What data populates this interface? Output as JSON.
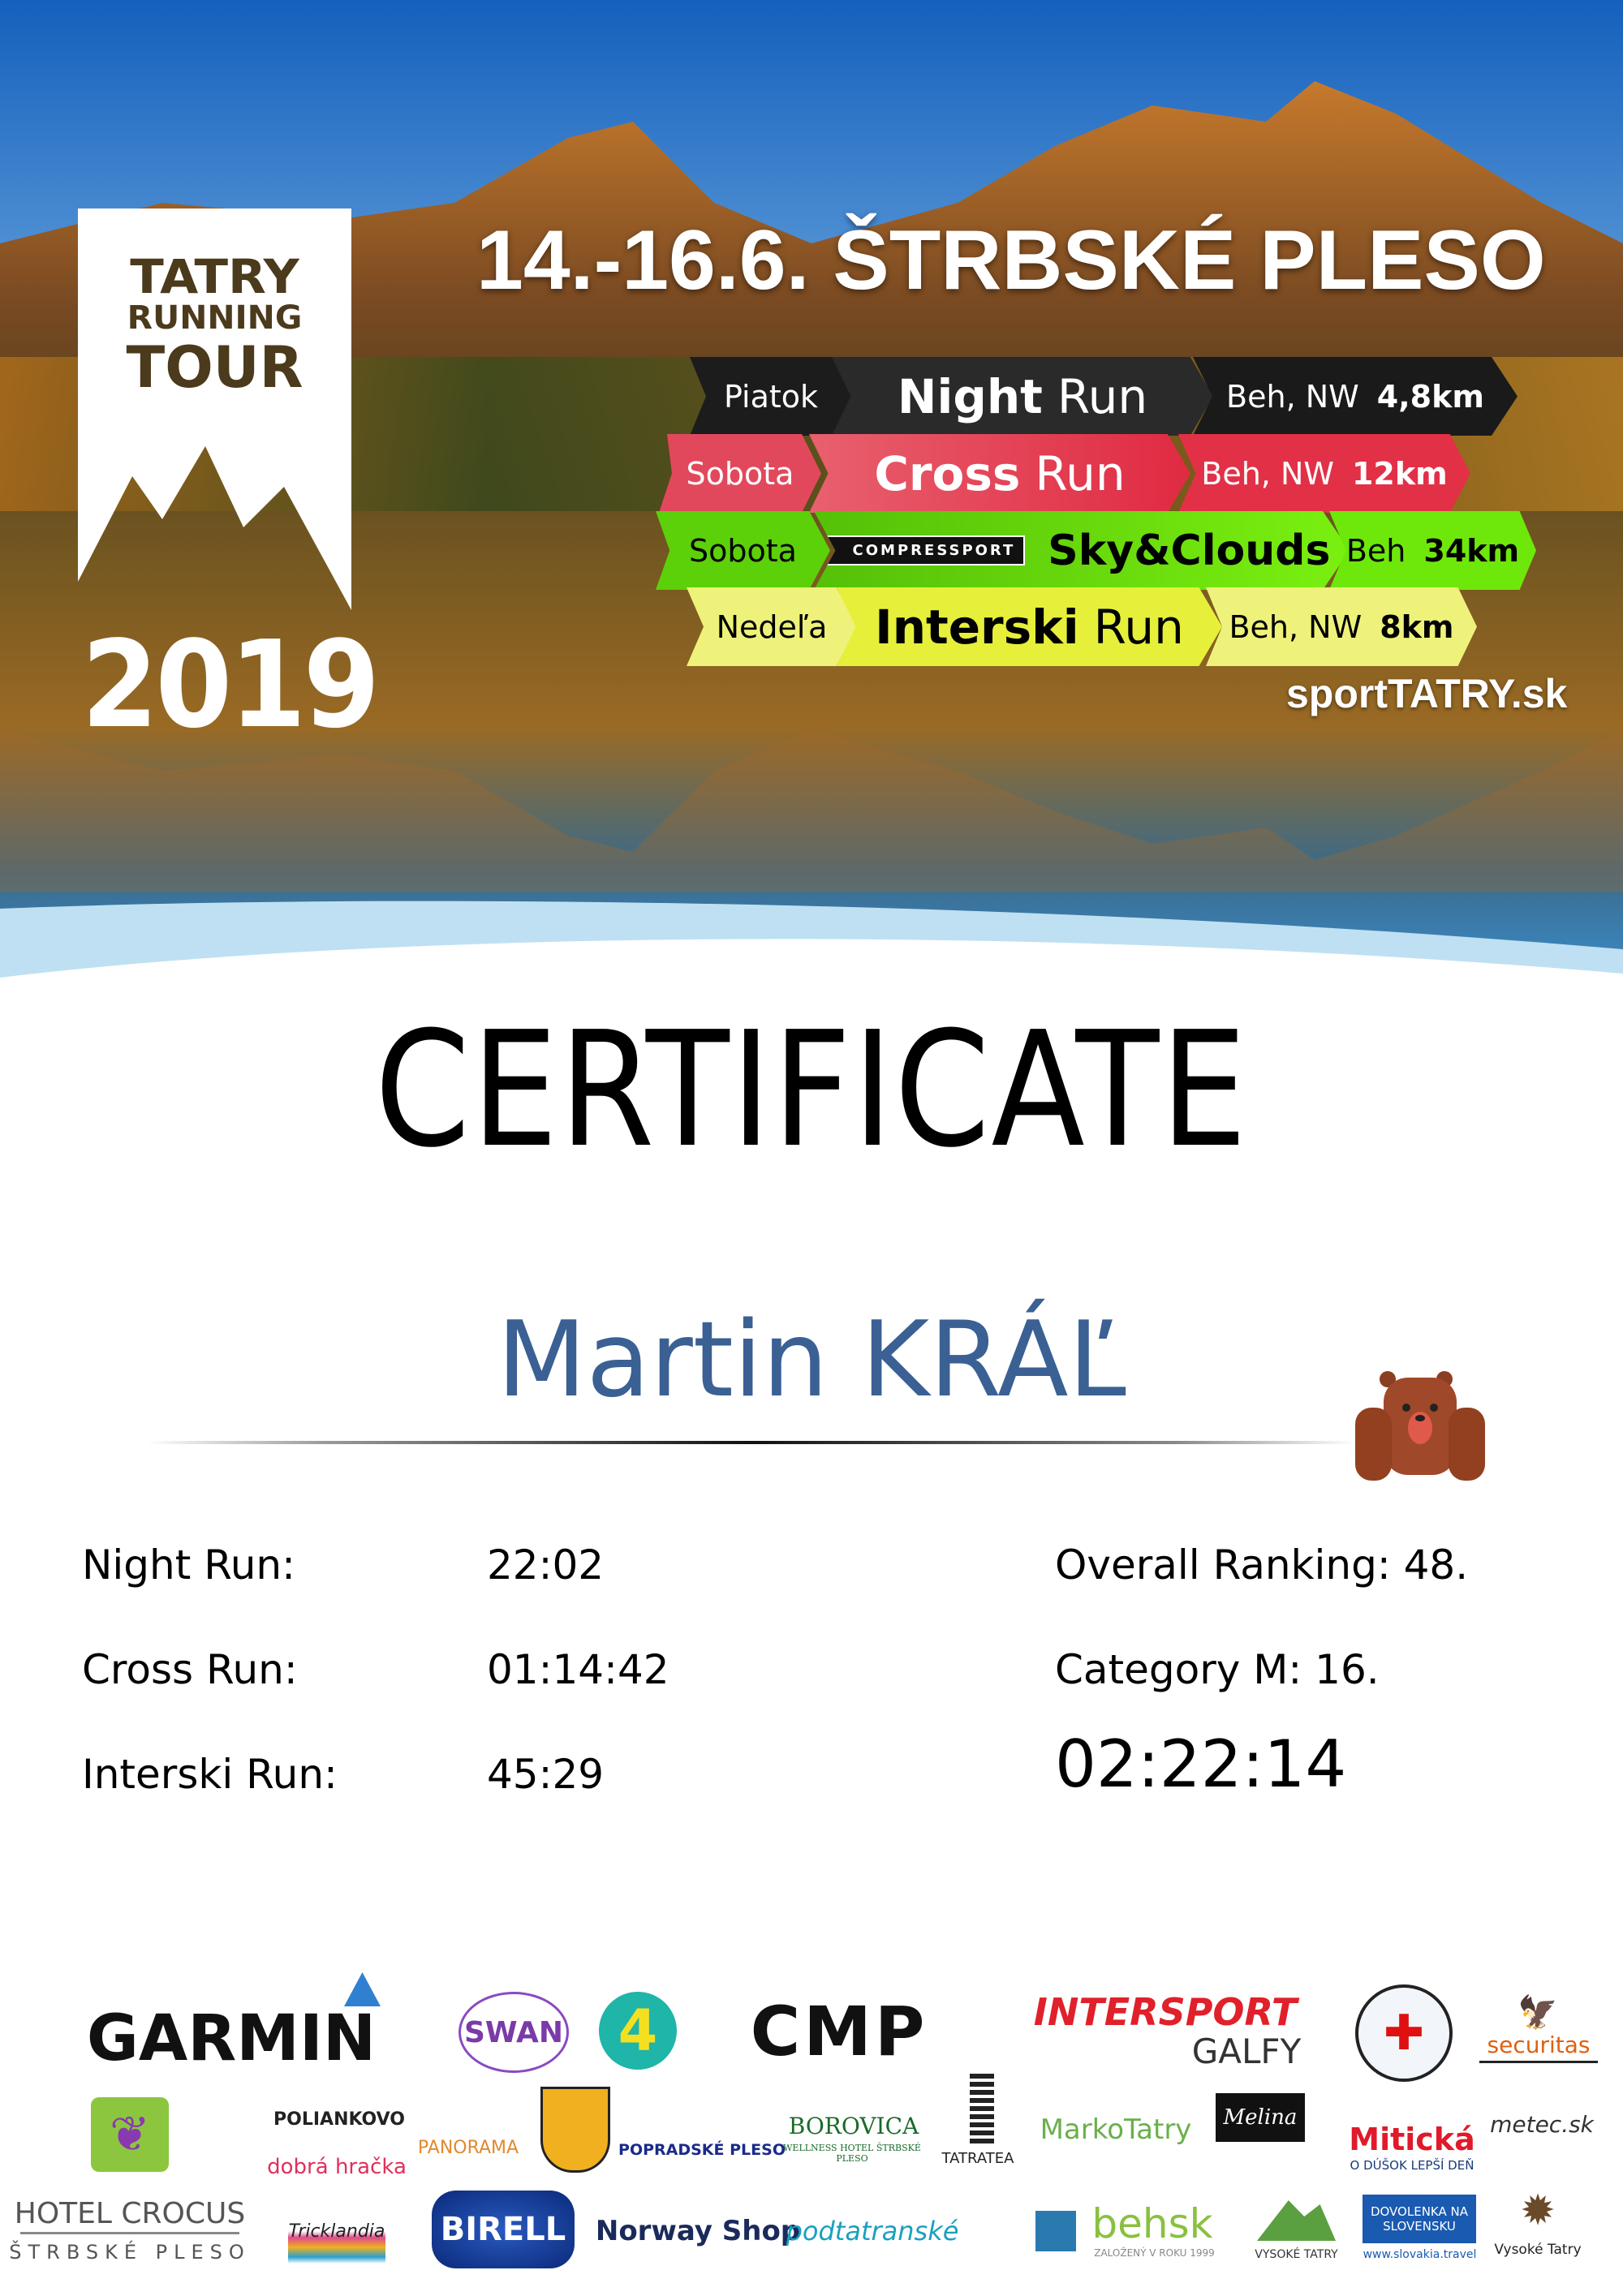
{
  "header": {
    "title": "14.-16.6.  ŠTRBSKÉ PLESO",
    "logo": {
      "line1": "TATRY",
      "line2": "RUNNING",
      "line3": "TOUR",
      "year": "2019"
    },
    "website": "sportTATRY.sk",
    "races": [
      {
        "day": "Piatok",
        "name_bold": "Night",
        "name_light": "Run",
        "type": "Beh, NW",
        "distance": "4,8km",
        "color": "#262626",
        "day_color": "#1a1a1a",
        "text_color": "#ffffff"
      },
      {
        "day": "Sobota",
        "name_bold": "Cross",
        "name_light": "Run",
        "type": "Beh, NW",
        "distance": "12km",
        "color": "#e23047",
        "day_color": "#e2485c",
        "text_color": "#ffffff"
      },
      {
        "day": "Sobota",
        "sponsor": "COMPRESSPORT",
        "name_bold": "Sky&Clouds",
        "name_light": "",
        "type": "Beh",
        "distance": "34km",
        "color": "#6ee80a",
        "day_color": "#5cd008",
        "text_color": "#000000"
      },
      {
        "day": "Nedeľa",
        "name_bold": "Interski",
        "name_light": "Run",
        "type": "Beh, NW",
        "distance": "8km",
        "color": "#e6f03a",
        "day_color": "#eef27a",
        "text_color": "#000000"
      }
    ]
  },
  "certificate": {
    "heading": "CERTIFICATE",
    "participant": "Martin KRÁĽ",
    "name_color": "#3a6094",
    "results": [
      {
        "label": "Night Run:",
        "time": "22:02"
      },
      {
        "label": "Cross Run:",
        "time": "01:14:42"
      },
      {
        "label": "Interski Run:",
        "time": "45:29"
      }
    ],
    "overall_ranking": "Overall Ranking: 48.",
    "category": "Category M: 16.",
    "total_time": "02:22:14"
  },
  "sponsors": {
    "garmin": "GARMIN",
    "swan": "SWAN",
    "ka4": "4",
    "cmp": "CMP",
    "intersport": "INTERSPORT",
    "galfy": "GALFY",
    "securitas": "securitas",
    "polianko": "POLIANKOVO",
    "dobra": "dobrá hračka",
    "panorama": "PANORAMA",
    "popradske": "POPRADSKÉ PLESO",
    "borovica": "BOROVICA",
    "borovica_sub": "WELLNESS HOTEL ŠTRBSKÉ PLESO",
    "tatratea": "TATRATEA",
    "marko": "MarkoTatry",
    "melina": "Melina",
    "miticka": "Mitická",
    "miticka_sub": "O DÚŠOK LEPŠÍ DEŇ",
    "metec": "metec.sk",
    "crocus": "HOTEL CROCUS",
    "crocus_sub": "ŠTRBSKÉ PLESO",
    "tricklandia": "Tricklandia",
    "birell": "BIRELL",
    "norway": "Norway Shop",
    "podtatranske": "podtatranské",
    "behsk": "behsk",
    "behsk_sub": "ZALOŽENÝ V ROKU 1999",
    "vt": "VYSOKÉ TATRY",
    "dovolenka": "DOVOLENKA NA SLOVENSKU",
    "dovolenka_sub": "www.slovakia.travel",
    "region": "Vysoké Tatry"
  }
}
